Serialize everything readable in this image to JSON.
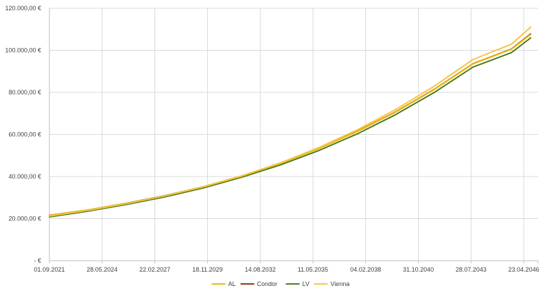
{
  "chart_data": {
    "type": "line",
    "title": "",
    "xlabel": "",
    "ylabel": "",
    "x_ticks": [
      "01.09.2021",
      "28.05.2024",
      "22.02.2027",
      "18.11.2029",
      "14.08.2032",
      "11.05.2035",
      "04.02.2038",
      "31.10.2040",
      "28.07.2043",
      "23.04.2046"
    ],
    "y_ticks": [
      "-  €",
      "20.000,00 €",
      "40.000,00 €",
      "60.000,00 €",
      "80.000,00 €",
      "100.000,00 €",
      "120.000,00 €"
    ],
    "ylim": [
      0,
      120000
    ],
    "xlim": [
      "2021-09-01",
      "2047-01-19"
    ],
    "grid": true,
    "legend_position": "bottom",
    "x": [
      "2021-09-01",
      "2023-09-01",
      "2025-09-01",
      "2027-09-01",
      "2029-09-01",
      "2031-09-01",
      "2033-09-01",
      "2035-09-01",
      "2037-09-01",
      "2039-09-01",
      "2041-09-01",
      "2043-09-01",
      "2045-09-01",
      "2046-09-01"
    ],
    "series": [
      {
        "name": "AL",
        "color": "#F2B705",
        "values": [
          21500,
          24100,
          27200,
          30800,
          35100,
          40200,
          46200,
          53300,
          61400,
          70700,
          81400,
          93500,
          100500,
          107500
        ]
      },
      {
        "name": "Condor",
        "color": "#8B3A0F",
        "values": [
          21600,
          24100,
          27300,
          30900,
          35200,
          40300,
          46300,
          53400,
          61500,
          70800,
          81500,
          93600,
          100600,
          107800
        ]
      },
      {
        "name": "LV",
        "color": "#4A7A1E",
        "values": [
          20800,
          23500,
          26700,
          30300,
          34600,
          39700,
          45500,
          52400,
          60300,
          69500,
          80000,
          92000,
          98900,
          105900
        ]
      },
      {
        "name": "Vienna",
        "color": "#F5C542",
        "values": [
          21200,
          23900,
          27100,
          30800,
          35200,
          40400,
          46500,
          53800,
          62200,
          71900,
          83000,
          95600,
          102900,
          111000
        ]
      }
    ]
  }
}
